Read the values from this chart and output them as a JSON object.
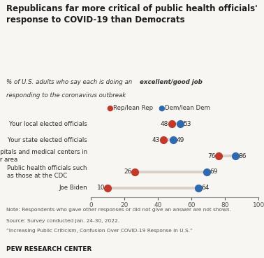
{
  "title": "Republicans far more critical of public health officials'\nresponse to COVID-19 than Democrats",
  "categories": [
    "Your local elected officials",
    "Your state elected officials",
    "Hospitals and medical centers in\nyour area",
    "Public health officials such\nas those at the CDC",
    "Joe Biden"
  ],
  "rep_values": [
    48,
    43,
    76,
    26,
    10
  ],
  "dem_values": [
    53,
    49,
    86,
    69,
    64
  ],
  "rep_color": "#c0392b",
  "dem_color": "#2e6aad",
  "line_color": "#d9d0c8",
  "background_color": "#f8f6f2",
  "xlim": [
    0,
    100
  ],
  "xticks": [
    0,
    20,
    40,
    60,
    80,
    100
  ],
  "note_line1": "Note: Respondents who gave other responses or did not give an answer are not shown.",
  "note_line2": "Source: Survey conducted Jan. 24-30, 2022.",
  "note_line3": "“Increasing Public Criticism, Confusion Over COVID-19 Response in U.S.”",
  "footer": "PEW RESEARCH CENTER",
  "legend_rep": "Rep/lean Rep",
  "legend_dem": "Dem/lean Dem"
}
